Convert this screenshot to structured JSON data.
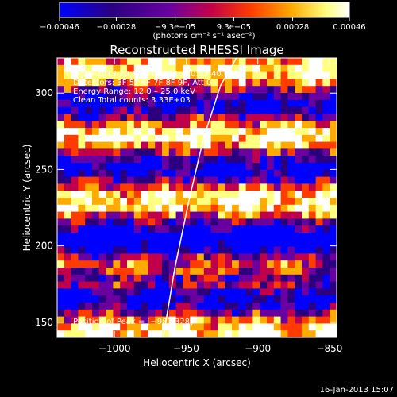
{
  "chart_data": {
    "type": "heatmap",
    "title": "Reconstructed RHESSI Image",
    "xlabel": "Heliocentric X (arcsec)",
    "ylabel": "Heliocentric Y (arcsec)",
    "xlim": [
      -1040,
      -845
    ],
    "ylim": [
      140,
      323
    ],
    "xticks": [
      -1000,
      -950,
      -900,
      -850
    ],
    "xtick_labels": [
      "−1000",
      "−950",
      "−900",
      "−850"
    ],
    "yticks": [
      150,
      200,
      250,
      300
    ],
    "ytick_labels": [
      "150",
      "200",
      "250",
      "300"
    ],
    "colorbar": {
      "unit_label": "(photons cm⁻² s⁻¹ asec⁻²)",
      "range": [
        -0.00046,
        0.00046
      ],
      "ticks": [
        -0.00046,
        -0.00028,
        -9.3e-05,
        9.3e-05,
        0.00028,
        0.00046
      ],
      "tick_labels": [
        "−0.00046",
        "−0.00028",
        "−9.3e−05",
        "9.3e−05",
        "0.00028",
        "0.00046"
      ],
      "colormap": [
        "#0000ff",
        "#2a0080",
        "#6a00a0",
        "#c0004a",
        "#ff3c00",
        "#ffaa00",
        "#ffff80",
        "#ffffff"
      ]
    },
    "annotations": [
      "9-Jan-2013 20:53:04.000 to 20:53:40.000",
      "Detectors: 3F 5F 6F 7F 8F 9F, Att 0",
      "Energy Range: 12.0 – 25.0 keV",
      "Clean     Total counts: 3.33E+03"
    ],
    "peak_label": "Position of Peak = [−981,328]",
    "limb_curve": {
      "x": [
        -966,
        -958,
        -948,
        -938,
        -926,
        -915
      ],
      "y": [
        140,
        185,
        230,
        270,
        305,
        323
      ]
    }
  },
  "footer_timestamp": "16-Jan-2013 15:07"
}
